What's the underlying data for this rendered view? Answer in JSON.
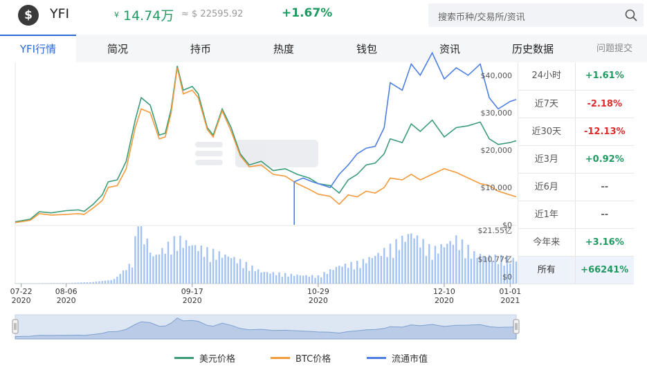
{
  "header": {
    "logo_glyph": "$",
    "coin": "YFI",
    "cny_symbol": "¥",
    "price_cny": "14.74万",
    "price_usd": "≈ $ 22595.92",
    "change": "+1.67%",
    "search_placeholder": "搜索币种/交易所/资讯"
  },
  "tabs": [
    "YFI行情",
    "简况",
    "持币",
    "热度",
    "钱包",
    "资讯",
    "历史数据"
  ],
  "feedback": "问题提交",
  "performance": [
    {
      "label": "24小时",
      "value": "+1.61%",
      "color": "#1f9960"
    },
    {
      "label": "近7天",
      "value": "-2.18%",
      "color": "#e02a2a"
    },
    {
      "label": "近30天",
      "value": "-12.13%",
      "color": "#e02a2a"
    },
    {
      "label": "近3月",
      "value": "+0.92%",
      "color": "#1f9960"
    },
    {
      "label": "近6月",
      "value": "--",
      "color": "#666666"
    },
    {
      "label": "近1年",
      "value": "--",
      "color": "#666666"
    },
    {
      "label": "今年来",
      "value": "+3.16%",
      "color": "#1f9960"
    },
    {
      "label": "所有",
      "value": "+66241%",
      "color": "#1f9960"
    }
  ],
  "colors": {
    "usd": "#3a9b77",
    "btc": "#f39a3b",
    "mcap": "#4a7ee6",
    "volume": "#a3c3f2"
  },
  "legend": [
    {
      "label": "美元价格",
      "color": "#3a9b77"
    },
    {
      "label": "BTC价格",
      "color": "#f39a3b"
    },
    {
      "label": "流通市值",
      "color": "#4a7ee6"
    }
  ],
  "chart_data": {
    "type": "line",
    "y_axis_labels": [
      "$40,000",
      "$30,000",
      "$20,000",
      "$10,000",
      "$0"
    ],
    "ylim": [
      0,
      42000
    ],
    "volume_axis_labels": [
      "$21.55亿",
      "$10.77亿",
      "$0"
    ],
    "volume_ylim": [
      0,
      21.55
    ],
    "x_ticks": [
      {
        "date": "07-22",
        "year": "2020"
      },
      {
        "date": "08-06",
        "year": "2020"
      },
      {
        "date": "09-17",
        "year": "2020"
      },
      {
        "date": "10-29",
        "year": "2020"
      },
      {
        "date": "12-10",
        "year": "2020"
      },
      {
        "date": "01-01",
        "year": "2021"
      }
    ],
    "x_start": "2020-07-20",
    "x_end": "2021-01-03",
    "series": [
      {
        "name": "美元价格",
        "points": [
          [
            "2020-07-20",
            800
          ],
          [
            "2020-07-25",
            1500
          ],
          [
            "2020-07-28",
            3500
          ],
          [
            "2020-08-01",
            3200
          ],
          [
            "2020-08-06",
            3800
          ],
          [
            "2020-08-10",
            4000
          ],
          [
            "2020-08-12",
            3600
          ],
          [
            "2020-08-15",
            5500
          ],
          [
            "2020-08-18",
            8000
          ],
          [
            "2020-08-20",
            11500
          ],
          [
            "2020-08-23",
            12000
          ],
          [
            "2020-08-26",
            17000
          ],
          [
            "2020-08-29",
            28000
          ],
          [
            "2020-08-31",
            34000
          ],
          [
            "2020-09-03",
            32000
          ],
          [
            "2020-09-06",
            24000
          ],
          [
            "2020-09-08",
            24500
          ],
          [
            "2020-09-10",
            31000
          ],
          [
            "2020-09-12",
            42500
          ],
          [
            "2020-09-14",
            36000
          ],
          [
            "2020-09-17",
            37000
          ],
          [
            "2020-09-19",
            35000
          ],
          [
            "2020-09-22",
            26000
          ],
          [
            "2020-09-24",
            24000
          ],
          [
            "2020-09-27",
            31000
          ],
          [
            "2020-09-30",
            26000
          ],
          [
            "2020-10-03",
            19000
          ],
          [
            "2020-10-06",
            16000
          ],
          [
            "2020-10-10",
            17000
          ],
          [
            "2020-10-14",
            14500
          ],
          [
            "2020-10-18",
            15000
          ],
          [
            "2020-10-22",
            13500
          ],
          [
            "2020-10-26",
            12500
          ],
          [
            "2020-10-29",
            11000
          ],
          [
            "2020-11-02",
            10500
          ],
          [
            "2020-11-05",
            8500
          ],
          [
            "2020-11-08",
            12000
          ],
          [
            "2020-11-11",
            13500
          ],
          [
            "2020-11-14",
            16000
          ],
          [
            "2020-11-17",
            16500
          ],
          [
            "2020-11-20",
            19000
          ],
          [
            "2020-11-22",
            23000
          ],
          [
            "2020-11-26",
            22000
          ],
          [
            "2020-11-29",
            27000
          ],
          [
            "2020-12-02",
            25000
          ],
          [
            "2020-12-06",
            28000
          ],
          [
            "2020-12-10",
            23500
          ],
          [
            "2020-12-14",
            26000
          ],
          [
            "2020-12-18",
            26500
          ],
          [
            "2020-12-22",
            27500
          ],
          [
            "2020-12-25",
            23000
          ],
          [
            "2020-12-28",
            21500
          ],
          [
            "2021-01-01",
            22000
          ],
          [
            "2021-01-03",
            22500
          ]
        ]
      },
      {
        "name": "BTC价格",
        "points": [
          [
            "2020-07-20",
            600
          ],
          [
            "2020-07-25",
            1200
          ],
          [
            "2020-07-28",
            3000
          ],
          [
            "2020-08-01",
            2600
          ],
          [
            "2020-08-06",
            2800
          ],
          [
            "2020-08-10",
            3000
          ],
          [
            "2020-08-12",
            2800
          ],
          [
            "2020-08-15",
            4500
          ],
          [
            "2020-08-18",
            6500
          ],
          [
            "2020-08-20",
            10000
          ],
          [
            "2020-08-23",
            10500
          ],
          [
            "2020-08-26",
            15000
          ],
          [
            "2020-08-29",
            26000
          ],
          [
            "2020-08-31",
            31000
          ],
          [
            "2020-09-03",
            30000
          ],
          [
            "2020-09-06",
            23000
          ],
          [
            "2020-09-08",
            23500
          ],
          [
            "2020-09-10",
            30000
          ],
          [
            "2020-09-12",
            42000
          ],
          [
            "2020-09-14",
            35000
          ],
          [
            "2020-09-17",
            36000
          ],
          [
            "2020-09-19",
            34000
          ],
          [
            "2020-09-22",
            25500
          ],
          [
            "2020-09-24",
            23500
          ],
          [
            "2020-09-27",
            30500
          ],
          [
            "2020-09-30",
            25000
          ],
          [
            "2020-10-03",
            18500
          ],
          [
            "2020-10-06",
            15500
          ],
          [
            "2020-10-10",
            16000
          ],
          [
            "2020-10-14",
            13500
          ],
          [
            "2020-10-18",
            13000
          ],
          [
            "2020-10-22",
            11000
          ],
          [
            "2020-10-26",
            9500
          ],
          [
            "2020-10-29",
            8200
          ],
          [
            "2020-11-02",
            7600
          ],
          [
            "2020-11-05",
            5500
          ],
          [
            "2020-11-08",
            8000
          ],
          [
            "2020-11-11",
            7500
          ],
          [
            "2020-11-14",
            9000
          ],
          [
            "2020-11-17",
            8500
          ],
          [
            "2020-11-20",
            10000
          ],
          [
            "2020-11-22",
            12500
          ],
          [
            "2020-11-26",
            12000
          ],
          [
            "2020-11-29",
            13500
          ],
          [
            "2020-12-02",
            12000
          ],
          [
            "2020-12-06",
            13500
          ],
          [
            "2020-12-10",
            15000
          ],
          [
            "2020-12-14",
            14000
          ],
          [
            "2020-12-18",
            12500
          ],
          [
            "2020-12-22",
            11000
          ],
          [
            "2020-12-25",
            10500
          ],
          [
            "2020-12-28",
            9000
          ],
          [
            "2021-01-01",
            8000
          ],
          [
            "2021-01-03",
            7500
          ]
        ]
      },
      {
        "name": "流通市值",
        "points": [
          [
            "2020-10-21",
            0
          ],
          [
            "2020-10-21",
            11500
          ],
          [
            "2020-10-24",
            12500
          ],
          [
            "2020-10-27",
            11500
          ],
          [
            "2020-10-29",
            11000
          ],
          [
            "2020-11-02",
            10000
          ],
          [
            "2020-11-05",
            13500
          ],
          [
            "2020-11-08",
            16000
          ],
          [
            "2020-11-11",
            19000
          ],
          [
            "2020-11-14",
            20500
          ],
          [
            "2020-11-17",
            21000
          ],
          [
            "2020-11-20",
            26000
          ],
          [
            "2020-11-22",
            38000
          ],
          [
            "2020-11-26",
            36000
          ],
          [
            "2020-11-29",
            43000
          ],
          [
            "2020-12-02",
            40000
          ],
          [
            "2020-12-06",
            46000
          ],
          [
            "2020-12-10",
            39000
          ],
          [
            "2020-12-14",
            42000
          ],
          [
            "2020-12-18",
            40000
          ],
          [
            "2020-12-22",
            43000
          ],
          [
            "2020-12-25",
            34000
          ],
          [
            "2020-12-28",
            31000
          ],
          [
            "2021-01-01",
            33000
          ],
          [
            "2021-01-03",
            33500
          ]
        ]
      }
    ],
    "volume_points": [
      [
        "2020-07-20",
        0.1
      ],
      [
        "2020-08-06",
        0.2
      ],
      [
        "2020-08-15",
        0.6
      ],
      [
        "2020-08-22",
        1.5
      ],
      [
        "2020-08-28",
        7
      ],
      [
        "2020-08-30",
        21.5
      ],
      [
        "2020-09-04",
        9
      ],
      [
        "2020-09-12",
        15
      ],
      [
        "2020-09-17",
        13
      ],
      [
        "2020-09-22",
        11
      ],
      [
        "2020-09-30",
        9
      ],
      [
        "2020-10-10",
        4
      ],
      [
        "2020-10-20",
        3
      ],
      [
        "2020-10-29",
        2.5
      ],
      [
        "2020-11-05",
        6
      ],
      [
        "2020-11-12",
        7
      ],
      [
        "2020-11-22",
        12
      ],
      [
        "2020-11-29",
        17
      ],
      [
        "2020-12-06",
        11
      ],
      [
        "2020-12-14",
        15
      ],
      [
        "2020-12-20",
        10
      ],
      [
        "2020-12-26",
        9
      ],
      [
        "2021-01-03",
        8
      ]
    ]
  }
}
